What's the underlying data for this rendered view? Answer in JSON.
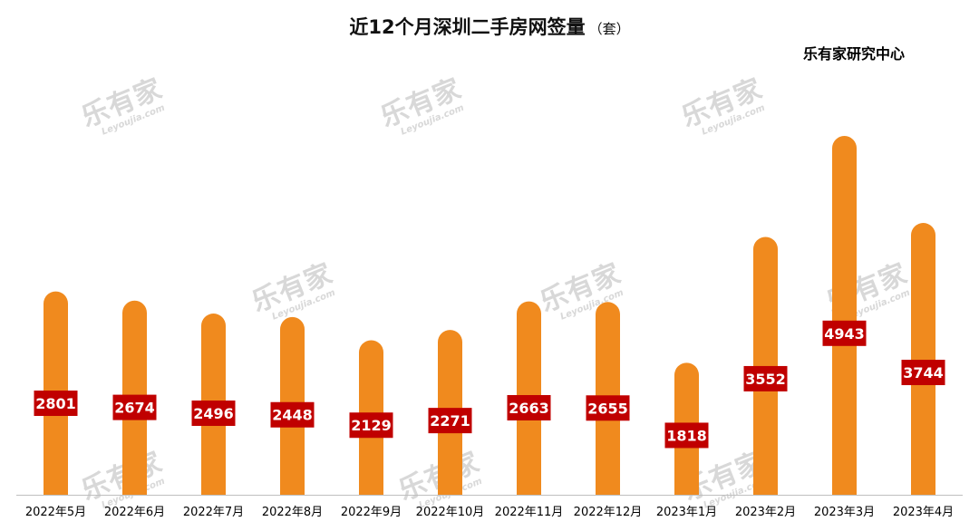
{
  "title": "近12个月深圳二手房网签量",
  "title_unit": "（套）",
  "source": "乐有家研究中心",
  "watermark": {
    "cn": "乐有家",
    "en": "Leyoujia.com"
  },
  "colors": {
    "bar": "#F08A1E",
    "label_bg": "#C00000",
    "label_text": "#FFFFFF",
    "axis": "#BFBFBF"
  },
  "chart_data": {
    "type": "bar",
    "title": "近12个月深圳二手房网签量",
    "xlabel": "",
    "ylabel": "",
    "ylim": [
      0,
      5500
    ],
    "grid": false,
    "categories": [
      "2022年5月",
      "2022年6月",
      "2022年7月",
      "2022年8月",
      "2022年9月",
      "2022年10月",
      "2022年11月",
      "2022年12月",
      "2023年1月",
      "2023年2月",
      "2023年3月",
      "2023年4月"
    ],
    "values": [
      2801,
      2674,
      2496,
      2448,
      2129,
      2271,
      2663,
      2655,
      1818,
      3552,
      4943,
      3744
    ]
  }
}
